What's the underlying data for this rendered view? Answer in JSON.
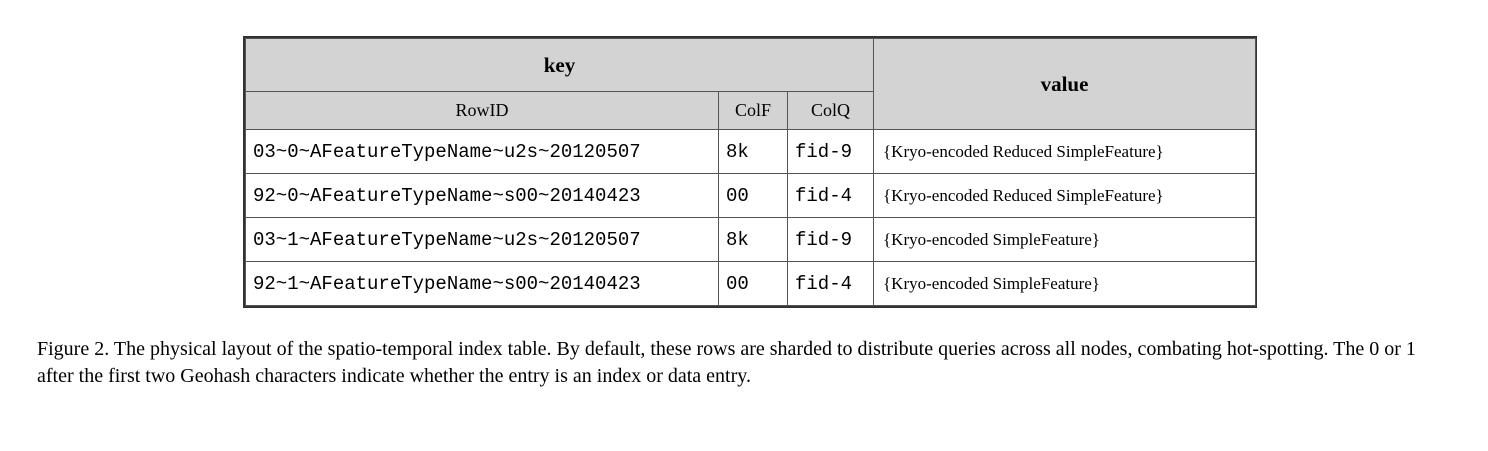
{
  "table": {
    "key_header": "key",
    "value_header": "value",
    "subheaders": [
      "RowID",
      "ColF",
      "ColQ"
    ],
    "rows": [
      {
        "rowid": "03~0~AFeatureTypeName~u2s~20120507",
        "colf": "8k",
        "colq": "fid-9",
        "value": "{Kryo-encoded Reduced SimpleFeature}"
      },
      {
        "rowid": "92~0~AFeatureTypeName~s00~20140423",
        "colf": "00",
        "colq": "fid-4",
        "value": "{Kryo-encoded Reduced SimpleFeature}"
      },
      {
        "rowid": "03~1~AFeatureTypeName~u2s~20120507",
        "colf": "8k",
        "colq": "fid-9",
        "value": "{Kryo-encoded SimpleFeature}"
      },
      {
        "rowid": "92~1~AFeatureTypeName~s00~20140423",
        "colf": "00",
        "colq": "fid-4",
        "value": "{Kryo-encoded SimpleFeature}"
      }
    ],
    "header_bg": "#d3d3d3"
  },
  "caption": {
    "text": "Figure 2. The physical layout of the spatio-temporal index table. By default, these rows are sharded to distribute queries across all nodes, combating hot-spotting. The 0 or 1 after the first two Geohash characters indicate whether the entry is an index or data entry."
  }
}
